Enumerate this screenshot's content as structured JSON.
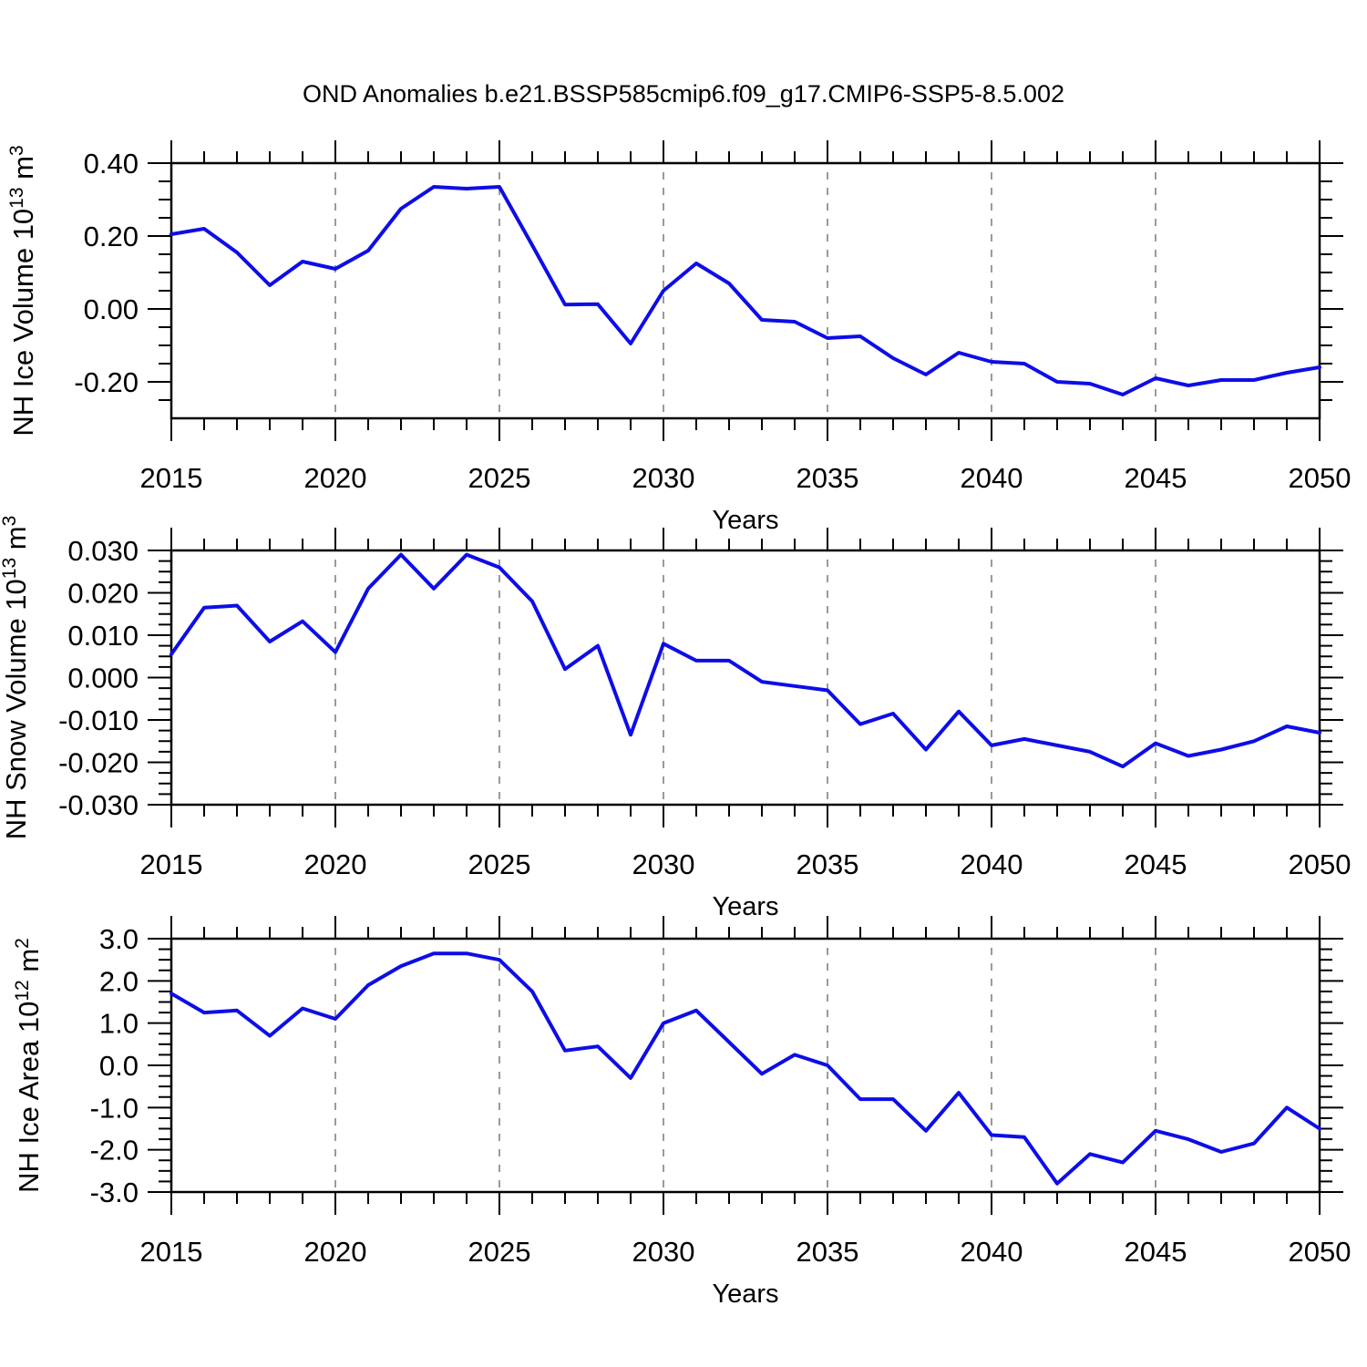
{
  "title": "OND Anomalies b.e21.BSSP585cmip6.f09_g17.CMIP6-SSP5-8.5.002",
  "colors": {
    "series": "#0d0de8",
    "grid": "#9a9a9a",
    "axis": "#000000"
  },
  "x_axis": {
    "label": "Years",
    "start_year": 2015,
    "end_year": 2050,
    "major_step": 5,
    "minor_step": 1,
    "major_tick_labels": [
      "2015",
      "2020",
      "2025",
      "2030",
      "2035",
      "2040",
      "2045",
      "2050"
    ],
    "grid_years": [
      2020,
      2025,
      2030,
      2035,
      2040,
      2045
    ]
  },
  "chart_data": [
    {
      "name": "nh-ice-volume",
      "type": "line",
      "ylabel_parts": [
        {
          "t": "NH Ice Volume 10",
          "sup": false
        },
        {
          "t": "13",
          "sup": true
        },
        {
          "t": " m",
          "sup": false
        },
        {
          "t": "3",
          "sup": true
        }
      ],
      "ylim": [
        -0.3,
        0.4
      ],
      "y_major": [
        0.4,
        0.2,
        0.0,
        -0.2
      ],
      "y_major_labels": [
        "0.40",
        "0.20",
        "0.00",
        "-0.20"
      ],
      "y_minor_step": 0.05,
      "x": [
        2015,
        2016,
        2017,
        2018,
        2019,
        2020,
        2021,
        2022,
        2023,
        2024,
        2025,
        2026,
        2027,
        2028,
        2029,
        2030,
        2031,
        2032,
        2033,
        2034,
        2035,
        2036,
        2037,
        2038,
        2039,
        2040,
        2041,
        2042,
        2043,
        2044,
        2045,
        2046,
        2047,
        2048,
        2049,
        2050
      ],
      "values": [
        0.205,
        0.22,
        0.155,
        0.065,
        0.13,
        0.11,
        0.16,
        0.275,
        0.335,
        0.33,
        0.335,
        0.175,
        0.012,
        0.013,
        -0.095,
        0.05,
        0.125,
        0.07,
        -0.03,
        -0.035,
        -0.08,
        -0.075,
        -0.135,
        -0.18,
        -0.12,
        -0.145,
        -0.15,
        -0.2,
        -0.205,
        -0.235,
        -0.19,
        -0.21,
        -0.195,
        -0.195,
        -0.175,
        -0.16
      ]
    },
    {
      "name": "nh-snow-volume",
      "type": "line",
      "ylabel_parts": [
        {
          "t": "NH Snow Volume 10",
          "sup": false
        },
        {
          "t": "13",
          "sup": true
        },
        {
          "t": " m",
          "sup": false
        },
        {
          "t": "3",
          "sup": true
        }
      ],
      "ylim": [
        -0.03,
        0.03
      ],
      "y_major": [
        0.03,
        0.02,
        0.01,
        0.0,
        -0.01,
        -0.02,
        -0.03
      ],
      "y_major_labels": [
        "0.030",
        "0.020",
        "0.010",
        "0.000",
        "-0.010",
        "-0.020",
        "-0.030"
      ],
      "y_minor_step": 0.0025,
      "x": [
        2015,
        2016,
        2017,
        2018,
        2019,
        2020,
        2021,
        2022,
        2023,
        2024,
        2025,
        2026,
        2027,
        2028,
        2029,
        2030,
        2031,
        2032,
        2033,
        2034,
        2035,
        2036,
        2037,
        2038,
        2039,
        2040,
        2041,
        2042,
        2043,
        2044,
        2045,
        2046,
        2047,
        2048,
        2049,
        2050
      ],
      "values": [
        0.0055,
        0.0165,
        0.017,
        0.0085,
        0.0133,
        0.006,
        0.021,
        0.029,
        0.021,
        0.029,
        0.026,
        0.018,
        0.002,
        0.0075,
        -0.0135,
        0.008,
        0.004,
        0.004,
        -0.001,
        -0.002,
        -0.003,
        -0.011,
        -0.0085,
        -0.017,
        -0.008,
        -0.016,
        -0.0145,
        -0.016,
        -0.0175,
        -0.021,
        -0.0155,
        -0.0185,
        -0.017,
        -0.015,
        -0.0115,
        -0.013
      ]
    },
    {
      "name": "nh-ice-area",
      "type": "line",
      "ylabel_parts": [
        {
          "t": "NH Ice Area 10",
          "sup": false
        },
        {
          "t": "12",
          "sup": true
        },
        {
          "t": " m",
          "sup": false
        },
        {
          "t": "2",
          "sup": true
        }
      ],
      "ylim": [
        -3.0,
        3.0
      ],
      "y_major": [
        3.0,
        2.0,
        1.0,
        0.0,
        -1.0,
        -2.0,
        -3.0
      ],
      "y_major_labels": [
        "3.0",
        "2.0",
        "1.0",
        "0.0",
        "-1.0",
        "-2.0",
        "-3.0"
      ],
      "y_minor_step": 0.25,
      "x": [
        2015,
        2016,
        2017,
        2018,
        2019,
        2020,
        2021,
        2022,
        2023,
        2024,
        2025,
        2026,
        2027,
        2028,
        2029,
        2030,
        2031,
        2032,
        2033,
        2034,
        2035,
        2036,
        2037,
        2038,
        2039,
        2040,
        2041,
        2042,
        2043,
        2044,
        2045,
        2046,
        2047,
        2048,
        2049,
        2050
      ],
      "values": [
        1.7,
        1.25,
        1.3,
        0.7,
        1.35,
        1.1,
        1.9,
        2.35,
        2.65,
        2.65,
        2.5,
        1.75,
        0.35,
        0.45,
        -0.3,
        1.0,
        1.3,
        0.55,
        -0.2,
        0.25,
        0.0,
        -0.8,
        -0.8,
        -1.55,
        -0.65,
        -1.65,
        -1.7,
        -2.8,
        -2.1,
        -2.3,
        -1.55,
        -1.75,
        -2.05,
        -1.85,
        -1.0,
        -1.5
      ]
    }
  ]
}
